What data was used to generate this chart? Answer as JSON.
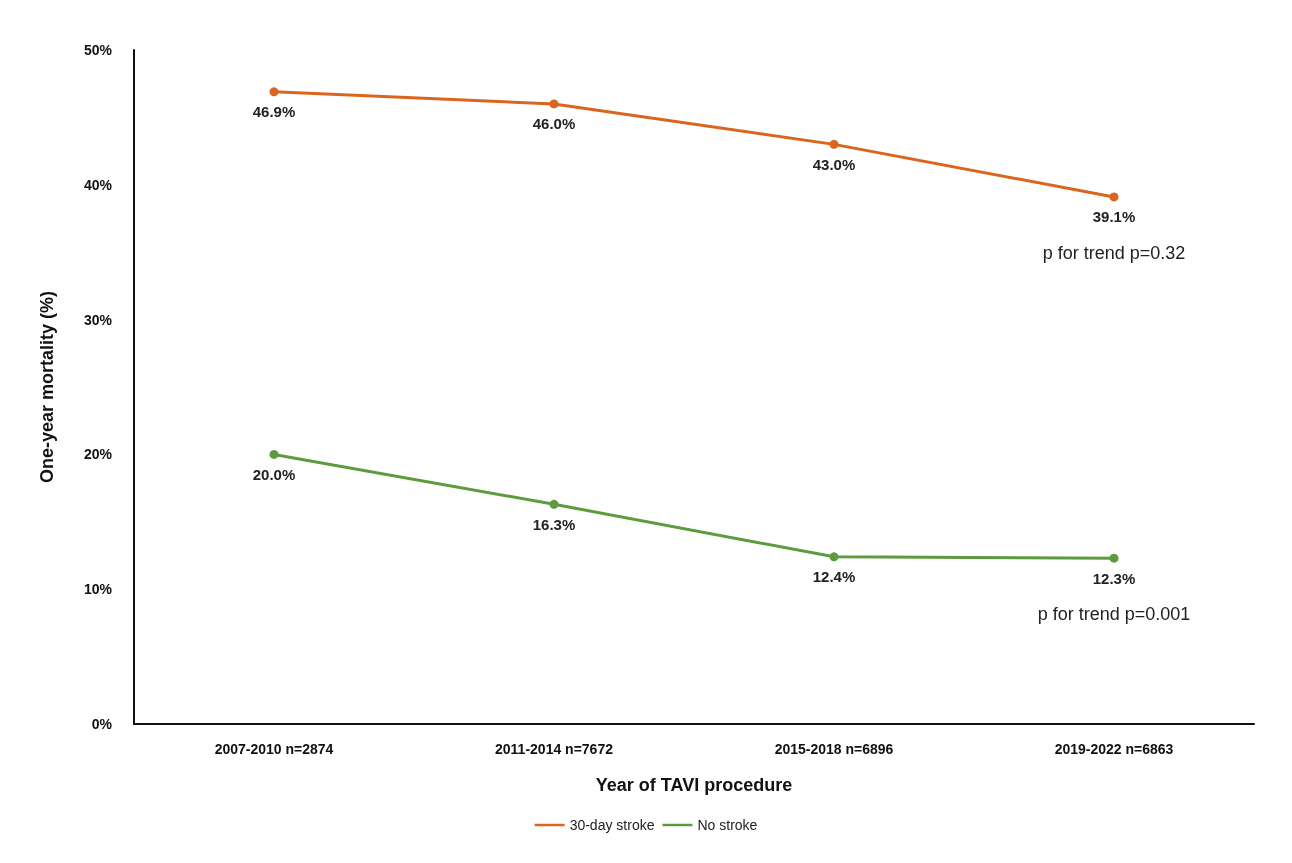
{
  "chart_data": {
    "type": "line",
    "xlabel": "Year of TAVI procedure",
    "ylabel": "One-year mortality (%)",
    "categories": [
      "2007-2010 n=2874",
      "2011-2014 n=7672",
      "2015-2018 n=6896",
      "2019-2022 n=6863"
    ],
    "series": [
      {
        "name": "30-day stroke",
        "color": "#d9651e",
        "values": [
          46.9,
          46.0,
          43.0,
          39.1
        ],
        "value_labels": [
          "46.9%",
          "46.0%",
          "43.0%",
          "39.1%"
        ]
      },
      {
        "name": "No stroke",
        "color": "#5e9a3e",
        "values": [
          20.0,
          16.3,
          12.4,
          12.3
        ],
        "value_labels": [
          "20.0%",
          "16.3%",
          "12.4%",
          "12.3%"
        ]
      }
    ],
    "ylim": [
      0,
      50
    ],
    "yticks": [
      {
        "value": 0,
        "label": "0%"
      },
      {
        "value": 10,
        "label": "10%"
      },
      {
        "value": 20,
        "label": "20%"
      },
      {
        "value": 30,
        "label": "30%"
      },
      {
        "value": 40,
        "label": "40%"
      },
      {
        "value": 50,
        "label": "50%"
      }
    ],
    "annotations": [
      "p for trend p=0.32",
      "p for trend p=0.001"
    ],
    "grid": false,
    "legend": "bottom",
    "marker": "circle",
    "line_style": "solid"
  }
}
